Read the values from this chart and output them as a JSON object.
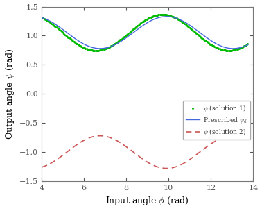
{
  "title": "",
  "xlabel": "Input angle $\\phi$ (rad)",
  "ylabel": "Output angle $\\psi$ (rad)",
  "xlim": [
    4,
    14
  ],
  "ylim": [
    -1.5,
    1.5
  ],
  "xticks": [
    4,
    6,
    8,
    10,
    12,
    14
  ],
  "yticks": [
    -1.5,
    -1.0,
    -0.5,
    0.0,
    0.5,
    1.0,
    1.5
  ],
  "phi_start": 4.0,
  "phi_end": 13.75,
  "n_points": 500,
  "prescribed_color": "#4466dd",
  "solution1_color": "#00bb00",
  "solution2_color": "#cc5555",
  "legend_labels": [
    "Prescribed $\\psi_d$",
    "$\\psi$ (solution 1)",
    "$\\psi$ (solution 2)"
  ],
  "background_color": "#ffffff",
  "figsize": [
    3.78,
    3.04
  ],
  "dpi": 100,
  "prescribed_A": 1.055,
  "prescribed_B": 0.275,
  "prescribed_omega": 1.0,
  "prescribed_phase": 2.05,
  "sol1_A": 1.055,
  "sol1_B": 0.31,
  "sol1_omega": 1.0,
  "sol1_phase": 1.85,
  "sol2_A": -1.0,
  "sol2_B": 0.28,
  "sol2_omega": 1.0,
  "sol2_phase": 2.05
}
